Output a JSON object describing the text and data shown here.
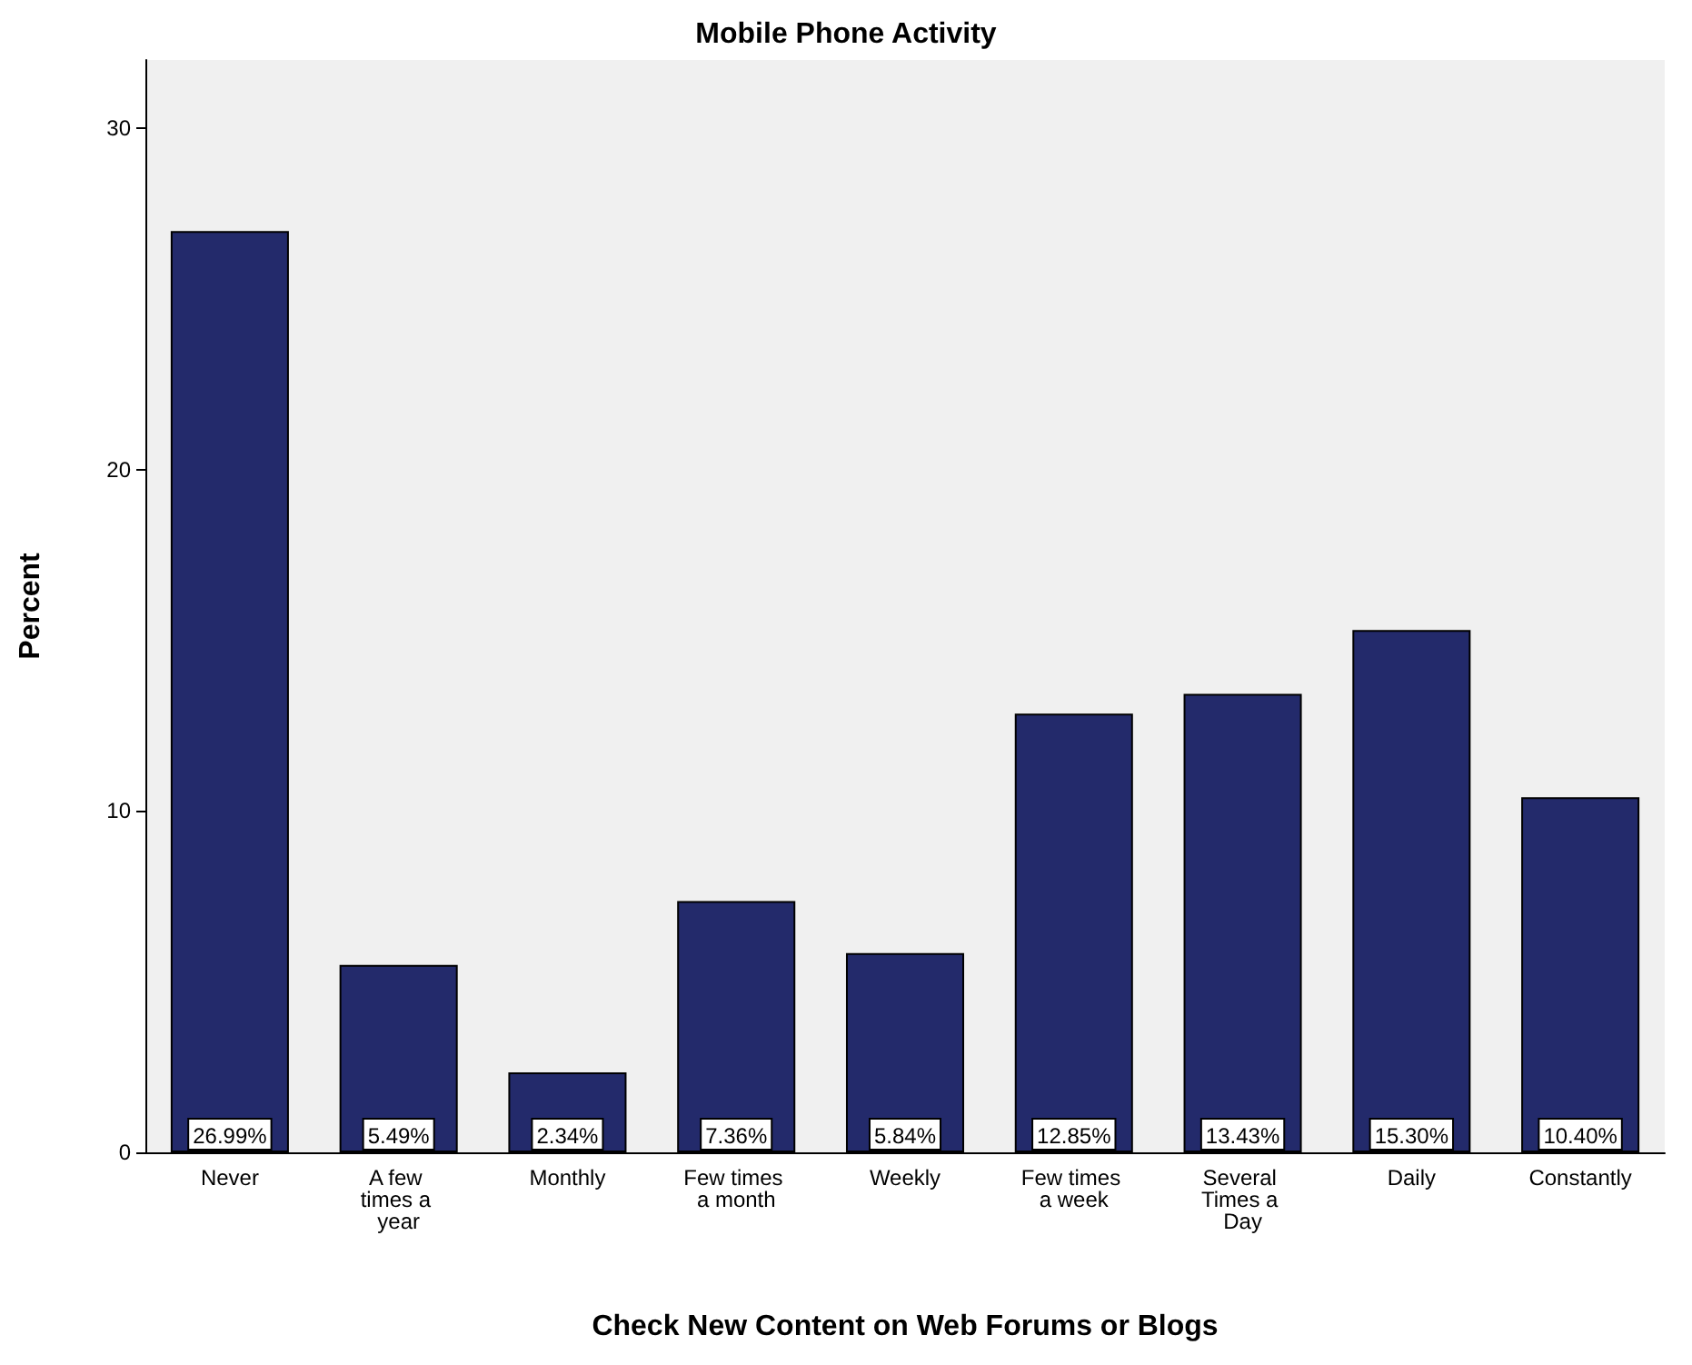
{
  "chart_data": {
    "type": "bar",
    "title": "Mobile Phone Activity",
    "xlabel": "Check New Content on Web Forums or Blogs",
    "ylabel": "Percent",
    "categories": [
      "Never",
      "A few times a year",
      "Monthly",
      "Few times a month",
      "Weekly",
      "Few times a week",
      "Several Times a Day",
      "Daily",
      "Constantly"
    ],
    "values": [
      26.99,
      5.49,
      2.34,
      7.36,
      5.84,
      12.85,
      13.43,
      15.3,
      10.4
    ],
    "value_labels": [
      "26.99%",
      "5.49%",
      "2.34%",
      "7.36%",
      "5.84%",
      "12.85%",
      "13.43%",
      "15.30%",
      "10.40%"
    ],
    "color": "#232a6b",
    "ylim": [
      0,
      32
    ],
    "yticks": [
      0,
      10,
      20,
      30
    ],
    "grid": false
  }
}
